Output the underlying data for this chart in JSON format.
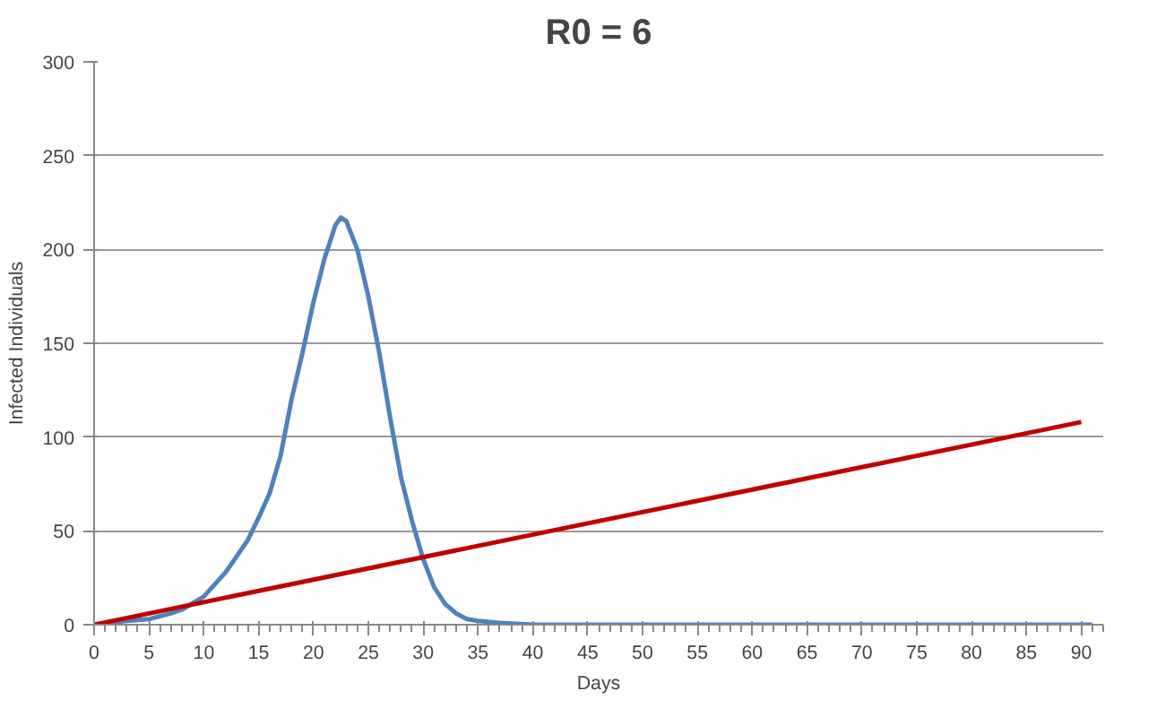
{
  "chart_data": {
    "type": "line",
    "title": "R0 = 6",
    "xlabel": "Days",
    "ylabel": "Infected Individuals",
    "xlim": [
      0,
      92
    ],
    "xticks": [
      0,
      5,
      10,
      15,
      20,
      25,
      30,
      35,
      40,
      45,
      50,
      55,
      60,
      65,
      70,
      75,
      80,
      85,
      90
    ],
    "ylim": [
      0,
      300
    ],
    "yticks": [
      0,
      50,
      100,
      150,
      200,
      250,
      300
    ],
    "grid": "y",
    "marker": "none",
    "line_style": "solid",
    "series": [
      {
        "color": "#4f81bd",
        "x": [
          0,
          3,
          5,
          7,
          8,
          10,
          12,
          14,
          15,
          16,
          17,
          18,
          19,
          20,
          21,
          22,
          22.5,
          23,
          24,
          25,
          26,
          27,
          28,
          29,
          30,
          31,
          32,
          33,
          34,
          35,
          37,
          40,
          50,
          60,
          70,
          80,
          91
        ],
        "values": [
          0,
          2,
          3,
          6,
          8,
          15,
          28,
          45,
          57,
          70,
          90,
          120,
          145,
          172,
          195,
          213,
          217,
          215,
          200,
          175,
          145,
          110,
          78,
          55,
          35,
          20,
          11,
          6,
          3,
          2,
          1,
          0,
          0,
          0,
          0,
          0,
          0
        ]
      },
      {
        "color": "#c00000",
        "x": [
          0,
          90
        ],
        "values": [
          0,
          108
        ]
      }
    ]
  }
}
